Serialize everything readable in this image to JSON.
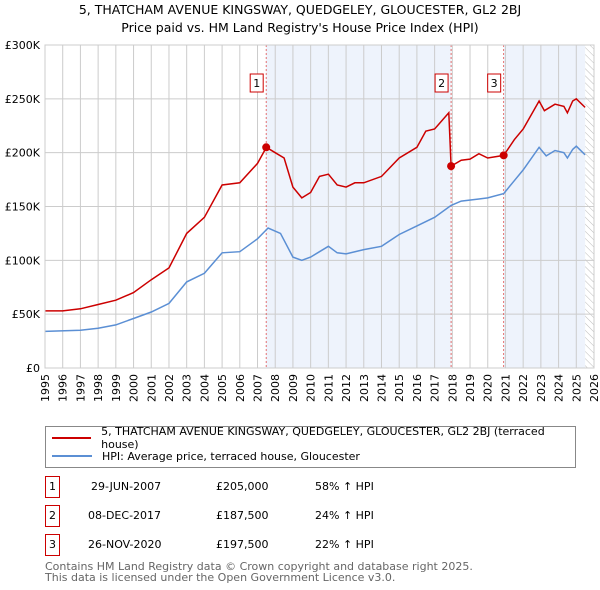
{
  "title": "5, THATCHAM AVENUE KINGSWAY, QUEDGELEY, GLOUCESTER, GL2 2BJ",
  "subtitle": "Price paid vs. HM Land Registry's House Price Index (HPI)",
  "chart_data": {
    "type": "line",
    "title": "5, THATCHAM AVENUE KINGSWAY, QUEDGELEY, GLOUCESTER, GL2 2BJ",
    "subtitle": "Price paid vs. HM Land Registry's House Price Index (HPI)",
    "xlim": [
      1995,
      2026
    ],
    "ylim": [
      0,
      300000
    ],
    "x_ticks": [
      "1995",
      "1996",
      "1997",
      "1998",
      "1999",
      "2000",
      "2001",
      "2002",
      "2003",
      "2004",
      "2005",
      "2006",
      "2007",
      "2008",
      "2009",
      "2010",
      "2011",
      "2012",
      "2013",
      "2014",
      "2015",
      "2016",
      "2017",
      "2018",
      "2019",
      "2020",
      "2021",
      "2022",
      "2023",
      "2024",
      "2025",
      "2026"
    ],
    "y_ticks": [
      {
        "v": 0,
        "label": "£0"
      },
      {
        "v": 50000,
        "label": "£50K"
      },
      {
        "v": 100000,
        "label": "£100K"
      },
      {
        "v": 150000,
        "label": "£150K"
      },
      {
        "v": 200000,
        "label": "£200K"
      },
      {
        "v": 250000,
        "label": "£250K"
      },
      {
        "v": 300000,
        "label": "£300K"
      }
    ],
    "grid": true,
    "legend_placement": "below",
    "series": [
      {
        "name": "5, THATCHAM AVENUE KINGSWAY, QUEDGELEY, GLOUCESTER, GL2 2BJ (terraced house)",
        "color": "#cc0000",
        "x": [
          1995,
          1996,
          1997,
          1998,
          1999,
          2000,
          2001,
          2002,
          2003,
          2004,
          2005,
          2006,
          2007,
          2007.5,
          2008,
          2008.5,
          2009,
          2009.5,
          2010,
          2010.5,
          2011,
          2011.5,
          2012,
          2012.5,
          2013,
          2014,
          2015,
          2016,
          2016.5,
          2017,
          2017.8,
          2017.93,
          2018.5,
          2019,
          2019.5,
          2020,
          2020.9,
          2021.5,
          2022,
          2022.9,
          2023.2,
          2023.8,
          2024.3,
          2024.5,
          2024.8,
          2025,
          2025.5
        ],
        "y": [
          53000,
          53000,
          55000,
          59000,
          63000,
          70000,
          82000,
          93000,
          125000,
          140000,
          170000,
          172000,
          190000,
          205000,
          200000,
          195000,
          168000,
          158000,
          163000,
          178000,
          180000,
          170000,
          168000,
          172000,
          172000,
          178000,
          195000,
          205000,
          220000,
          222000,
          237000,
          187500,
          193000,
          194000,
          199000,
          195000,
          197500,
          212000,
          222000,
          248000,
          239000,
          245000,
          243000,
          237000,
          248000,
          250000,
          242000
        ]
      },
      {
        "name": "HPI: Average price, terraced house, Gloucester",
        "color": "#5b8fd4",
        "x": [
          1995,
          1997,
          1998,
          1999,
          2000,
          2001,
          2002,
          2003,
          2004,
          2005,
          2006,
          2007,
          2007.6,
          2008.3,
          2009,
          2009.5,
          2010,
          2010.5,
          2011,
          2011.5,
          2012,
          2013,
          2014,
          2015,
          2016,
          2017,
          2017.93,
          2018.5,
          2019.5,
          2020,
          2020.9,
          2021.5,
          2022,
          2022.9,
          2023.3,
          2023.8,
          2024.3,
          2024.5,
          2024.8,
          2025,
          2025.5
        ],
        "y": [
          34000,
          35000,
          37000,
          40000,
          46000,
          52000,
          60000,
          80000,
          88000,
          107000,
          108000,
          120000,
          130000,
          125000,
          103000,
          100000,
          103000,
          108000,
          113000,
          107000,
          106000,
          110000,
          113000,
          124000,
          132000,
          140000,
          151000,
          155000,
          157000,
          158000,
          162000,
          174000,
          184000,
          205000,
          197000,
          202000,
          200000,
          195000,
          203000,
          206000,
          198000
        ]
      }
    ],
    "annotations": [
      {
        "label": "1",
        "x": 2007.49,
        "y": 205000
      },
      {
        "label": "2",
        "x": 2017.93,
        "y": 187500
      },
      {
        "label": "3",
        "x": 2020.9,
        "y": 197500
      }
    ],
    "shaded_ranges": [
      [
        2007.49,
        2017.93
      ],
      [
        2020.9,
        2025.5
      ]
    ],
    "hatched_from": 2025.5
  },
  "legend": [
    {
      "label": "5, THATCHAM AVENUE KINGSWAY, QUEDGELEY, GLOUCESTER, GL2 2BJ (terraced house)",
      "color": "#cc0000"
    },
    {
      "label": "HPI: Average price, terraced house, Gloucester",
      "color": "#5b8fd4"
    }
  ],
  "transactions": [
    {
      "num": "1",
      "date": "29-JUN-2007",
      "price": "£205,000",
      "hpi": "58% ↑ HPI"
    },
    {
      "num": "2",
      "date": "08-DEC-2017",
      "price": "£187,500",
      "hpi": "24% ↑ HPI"
    },
    {
      "num": "3",
      "date": "26-NOV-2020",
      "price": "£197,500",
      "hpi": "22% ↑ HPI"
    }
  ],
  "footer": [
    "Contains HM Land Registry data © Crown copyright and database right 2025.",
    "This data is licensed under the Open Government Licence v3.0."
  ]
}
